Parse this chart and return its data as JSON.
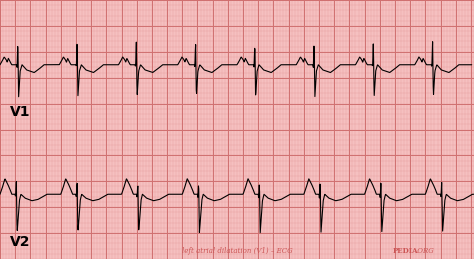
{
  "bg_color": "#f5c0c0",
  "grid_major_color": "#d07070",
  "grid_minor_color": "#e8a0a0",
  "ecg_color": "#000000",
  "label_color": "#cc5555",
  "label_v1": "V1",
  "label_v2": "V2",
  "caption_text": "left atrial dilatation (V1) – ECG",
  "caption_bold": "PEDIA",
  "caption_end": ".ORG",
  "fig_width": 4.74,
  "fig_height": 2.59,
  "dpi": 100,
  "minor_step": 0.2,
  "major_step": 1.0
}
